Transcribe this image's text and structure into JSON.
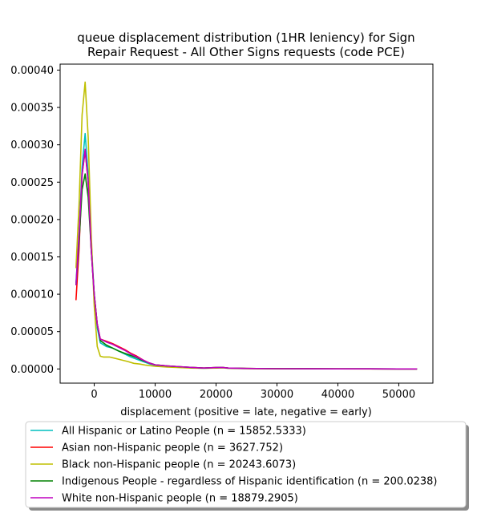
{
  "chart_data": {
    "type": "line",
    "title": "queue displacement distribution (1HR leniency) for Sign Repair Request - All Other Signs  requests (code PCE)",
    "title_lines": [
      "queue displacement distribution (1HR leniency) for Sign",
      "Repair Request - All Other Signs  requests (code PCE)"
    ],
    "xlabel": "displacement (positive = late, negative = early)",
    "ylabel": "",
    "xlim": [
      -5600,
      55600
    ],
    "ylim": [
      -1.9e-05,
      0.000408
    ],
    "x_ticks": [
      0,
      10000,
      20000,
      30000,
      40000,
      50000
    ],
    "x_tick_labels": [
      "0",
      "10000",
      "20000",
      "30000",
      "40000",
      "50000"
    ],
    "y_ticks": [
      0.0,
      5e-05,
      0.0001,
      0.00015,
      0.0002,
      0.00025,
      0.0003,
      0.00035,
      0.0004
    ],
    "y_tick_labels": [
      "0.00000",
      "0.00005",
      "0.00010",
      "0.00015",
      "0.00020",
      "0.00025",
      "0.00030",
      "0.00035",
      "0.00040"
    ],
    "grid": false,
    "legend_placement": "below",
    "series": [
      {
        "name": "All Hispanic or Latino People (n = 15852.5333)",
        "color": "#00bfbf",
        "points": [
          [
            -3000,
            0.000115
          ],
          [
            -2500,
            0.00018
          ],
          [
            -2000,
            0.00027
          ],
          [
            -1500,
            0.000315
          ],
          [
            -1000,
            0.00026
          ],
          [
            -500,
            0.00017
          ],
          [
            0,
            0.0001
          ],
          [
            500,
            5.5e-05
          ],
          [
            1000,
            3.5e-05
          ],
          [
            2000,
            3e-05
          ],
          [
            3000,
            2.8e-05
          ],
          [
            4000,
            2.4e-05
          ],
          [
            5000,
            2e-05
          ],
          [
            6000,
            1.6e-05
          ],
          [
            7000,
            1.3e-05
          ],
          [
            8000,
            1e-05
          ],
          [
            9000,
            7e-06
          ],
          [
            10000,
            5e-06
          ],
          [
            12000,
            3.5e-06
          ],
          [
            14000,
            2.5e-06
          ],
          [
            16000,
            1.5e-06
          ],
          [
            18000,
            1e-06
          ],
          [
            20000,
            1.5e-06
          ],
          [
            21000,
            1.8e-06
          ],
          [
            22000,
            1e-06
          ],
          [
            25000,
            5e-07
          ],
          [
            30000,
            3e-07
          ],
          [
            35000,
            1e-07
          ],
          [
            40000,
            1e-07
          ],
          [
            45000,
            5e-08
          ],
          [
            50000,
            0.0
          ],
          [
            53000,
            0.0
          ]
        ]
      },
      {
        "name": "Asian non-Hispanic people (n = 3627.752)",
        "color": "#ff0000",
        "points": [
          [
            -3000,
            9.2e-05
          ],
          [
            -2500,
            0.00016
          ],
          [
            -2000,
            0.00026
          ],
          [
            -1500,
            0.000292
          ],
          [
            -1000,
            0.00025
          ],
          [
            -500,
            0.00016
          ],
          [
            0,
            0.0001
          ],
          [
            500,
            6e-05
          ],
          [
            1000,
            4e-05
          ],
          [
            2000,
            3.7e-05
          ],
          [
            3000,
            3.4e-05
          ],
          [
            4000,
            3e-05
          ],
          [
            5000,
            2.6e-05
          ],
          [
            6000,
            2.1e-05
          ],
          [
            7000,
            1.7e-05
          ],
          [
            8000,
            1.2e-05
          ],
          [
            9000,
            8e-06
          ],
          [
            10000,
            5.5e-06
          ],
          [
            12000,
            4e-06
          ],
          [
            14000,
            3e-06
          ],
          [
            16000,
            2e-06
          ],
          [
            18000,
            1.2e-06
          ],
          [
            20000,
            1.8e-06
          ],
          [
            21000,
            2e-06
          ],
          [
            22000,
            1.2e-06
          ],
          [
            25000,
            6e-07
          ],
          [
            30000,
            3e-07
          ],
          [
            35000,
            2e-07
          ],
          [
            40000,
            1e-07
          ],
          [
            45000,
            5e-08
          ],
          [
            50000,
            0.0
          ],
          [
            53000,
            0.0
          ]
        ]
      },
      {
        "name": "Black non-Hispanic people (n = 20243.6073)",
        "color": "#bfbf00",
        "points": [
          [
            -3000,
            0.000135
          ],
          [
            -2500,
            0.00022
          ],
          [
            -2000,
            0.00034
          ],
          [
            -1500,
            0.000384
          ],
          [
            -1000,
            0.00031
          ],
          [
            -500,
            0.00018
          ],
          [
            0,
            8.5e-05
          ],
          [
            500,
            3e-05
          ],
          [
            1000,
            1.7e-05
          ],
          [
            1500,
            1.6e-05
          ],
          [
            2500,
            1.6e-05
          ],
          [
            3500,
            1.4e-05
          ],
          [
            4500,
            1.2e-05
          ],
          [
            5500,
            1e-05
          ],
          [
            6500,
            7.5e-06
          ],
          [
            7500,
            6.5e-06
          ],
          [
            8500,
            5e-06
          ],
          [
            10000,
            3.5e-06
          ],
          [
            12000,
            2.5e-06
          ],
          [
            14000,
            1.8e-06
          ],
          [
            16000,
            1.2e-06
          ],
          [
            18000,
            8e-07
          ],
          [
            20000,
            1.2e-06
          ],
          [
            21000,
            1.4e-06
          ],
          [
            22000,
            8e-07
          ],
          [
            25000,
            4e-07
          ],
          [
            30000,
            2e-07
          ],
          [
            35000,
            1e-07
          ],
          [
            40000,
            5e-08
          ],
          [
            45000,
            0.0
          ],
          [
            50000,
            0.0
          ],
          [
            53000,
            0.0
          ]
        ]
      },
      {
        "name": "Indigenous People - regardless of Hispanic identification (n = 200.0238)",
        "color": "#008000",
        "points": [
          [
            -3000,
            0.000112
          ],
          [
            -2500,
            0.00017
          ],
          [
            -2000,
            0.00024
          ],
          [
            -1500,
            0.000261
          ],
          [
            -1000,
            0.00023
          ],
          [
            -500,
            0.00016
          ],
          [
            0,
            0.0001
          ],
          [
            500,
            6e-05
          ],
          [
            1000,
            3.8e-05
          ],
          [
            2000,
            3.2e-05
          ],
          [
            3000,
            2.8e-05
          ],
          [
            4000,
            2.4e-05
          ],
          [
            5000,
            2.1e-05
          ],
          [
            6000,
            1.8e-05
          ],
          [
            7000,
            1.5e-05
          ],
          [
            8000,
            1.1e-05
          ],
          [
            9000,
            8e-06
          ],
          [
            10000,
            5.5e-06
          ],
          [
            12000,
            4e-06
          ],
          [
            14000,
            3e-06
          ],
          [
            16000,
            2e-06
          ],
          [
            18000,
            1.2e-06
          ],
          [
            20000,
            1.8e-06
          ],
          [
            21000,
            2e-06
          ],
          [
            22000,
            1.2e-06
          ],
          [
            25000,
            6e-07
          ],
          [
            30000,
            3e-07
          ],
          [
            35000,
            2e-07
          ],
          [
            40000,
            1e-07
          ],
          [
            45000,
            5e-08
          ],
          [
            50000,
            0.0
          ],
          [
            53000,
            0.0
          ]
        ]
      },
      {
        "name": "White non-Hispanic people (n = 18879.2905)",
        "color": "#bf00bf",
        "points": [
          [
            -3000,
            0.000112
          ],
          [
            -2500,
            0.00018
          ],
          [
            -2000,
            0.00026
          ],
          [
            -1500,
            0.000294
          ],
          [
            -1000,
            0.00025
          ],
          [
            -500,
            0.00016
          ],
          [
            0,
            0.0001
          ],
          [
            500,
            6e-05
          ],
          [
            1000,
            4e-05
          ],
          [
            2000,
            3.6e-05
          ],
          [
            3000,
            3.3e-05
          ],
          [
            4000,
            2.9e-05
          ],
          [
            5000,
            2.5e-05
          ],
          [
            6000,
            2e-05
          ],
          [
            7000,
            1.6e-05
          ],
          [
            8000,
            1.2e-05
          ],
          [
            9000,
            8e-06
          ],
          [
            10000,
            5.5e-06
          ],
          [
            12000,
            4e-06
          ],
          [
            14000,
            3e-06
          ],
          [
            16000,
            2e-06
          ],
          [
            18000,
            1.2e-06
          ],
          [
            20000,
            1.8e-06
          ],
          [
            21000,
            2e-06
          ],
          [
            22000,
            1.2e-06
          ],
          [
            25000,
            6e-07
          ],
          [
            30000,
            3e-07
          ],
          [
            35000,
            2e-07
          ],
          [
            40000,
            1e-07
          ],
          [
            45000,
            5e-08
          ],
          [
            50000,
            0.0
          ],
          [
            53000,
            0.0
          ]
        ]
      }
    ]
  }
}
